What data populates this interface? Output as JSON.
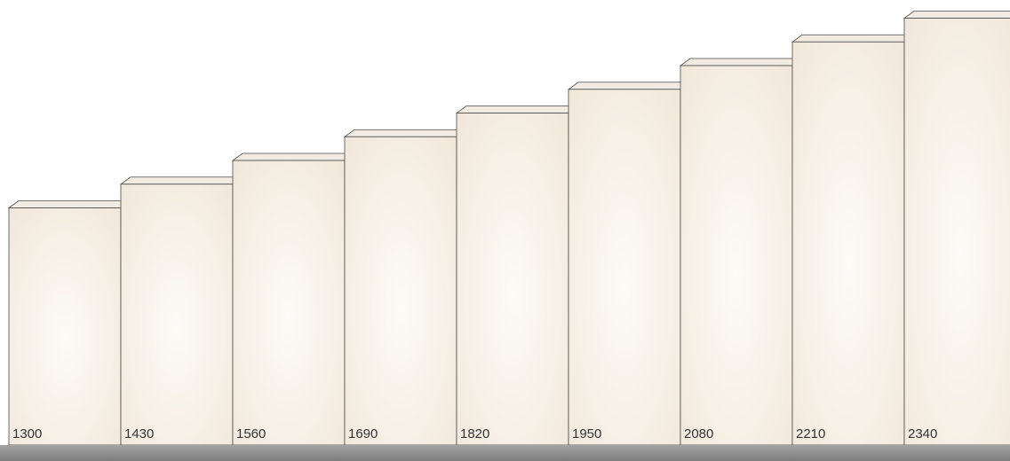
{
  "chart_data": {
    "type": "bar",
    "categories": [
      "1300",
      "1430",
      "1560",
      "1690",
      "1820",
      "1950",
      "2080",
      "2210",
      "2340"
    ],
    "values": [
      1300,
      1430,
      1560,
      1690,
      1820,
      1950,
      2080,
      2210,
      2340
    ],
    "title": "",
    "xlabel": "",
    "ylabel": "",
    "ylim": [
      0,
      2430
    ],
    "grid": false,
    "legend": "none",
    "style": "3d-stepped-columns"
  },
  "colors": {
    "bar_center": "#fdfbf7",
    "bar_edge": "#f0e7d9",
    "bar_top": "#f2ebe1",
    "bar_side": "#faf6ef",
    "bar_stroke": "#4a4a4a",
    "base_top": "#9a9a9a",
    "base_bottom": "#7d7d7d",
    "label": "#333333"
  }
}
